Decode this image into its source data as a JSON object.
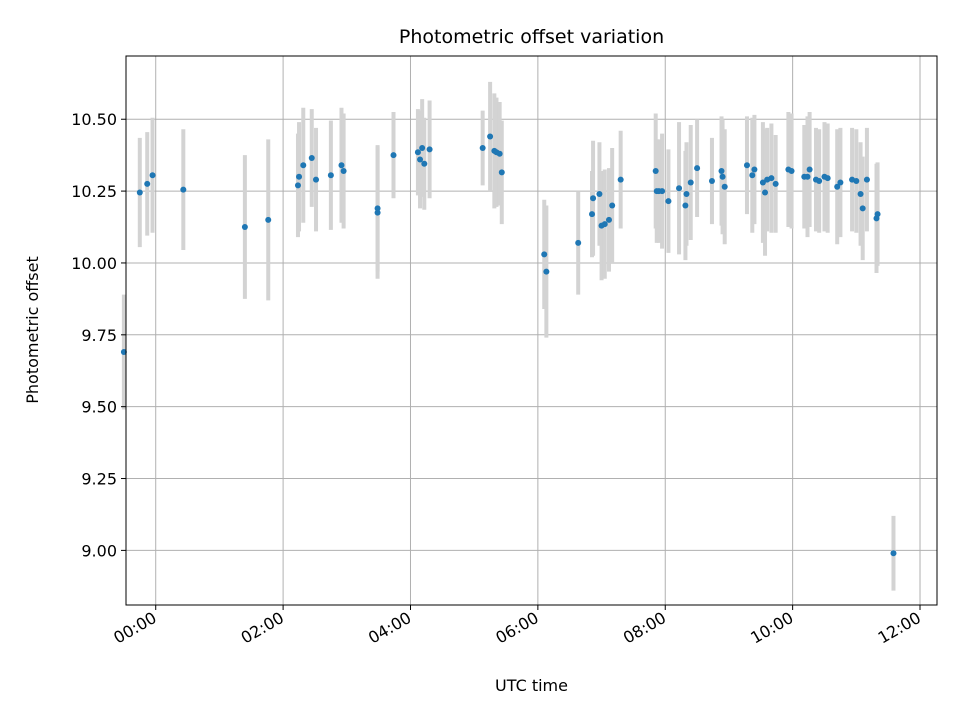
{
  "chart_data": {
    "type": "scatter",
    "title": "Photometric offset variation",
    "xlabel": "UTC time",
    "ylabel": "Photometric offset",
    "grid": true,
    "xlim": [
      "-00:28",
      "12:16"
    ],
    "ylim": [
      8.81,
      10.72
    ],
    "x_ticks": [
      "00:00",
      "02:00",
      "04:00",
      "06:00",
      "08:00",
      "10:00",
      "12:00"
    ],
    "y_ticks": [
      "9.00",
      "9.25",
      "9.50",
      "9.75",
      "10.00",
      "10.25",
      "10.50"
    ],
    "colors": {
      "point": "#1f77b4",
      "errorbar": "#d3d3d3",
      "grid": "#b0b0b0"
    },
    "series": [
      {
        "x": [
          "-00:30",
          "-00:15",
          "-00:08",
          "-00:03",
          "00:26",
          "01:24",
          "01:46",
          "02:14",
          "02:15",
          "02:19",
          "02:27",
          "02:31",
          "02:45",
          "02:55",
          "02:57",
          "03:29",
          "03:29",
          "03:44",
          "04:07",
          "04:09",
          "04:11",
          "04:13",
          "04:18",
          "05:08",
          "05:15",
          "05:19",
          "05:21",
          "05:24",
          "05:26",
          "06:06",
          "06:08",
          "06:38",
          "06:51",
          "06:52",
          "06:58",
          "07:00",
          "07:03",
          "07:07",
          "07:10",
          "07:18",
          "07:51",
          "07:52",
          "07:54",
          "07:57",
          "08:03",
          "08:13",
          "08:19",
          "08:20",
          "08:24",
          "08:30",
          "08:44",
          "08:53",
          "08:54",
          "08:56",
          "09:17",
          "09:22",
          "09:24",
          "09:32",
          "09:34",
          "09:36",
          "09:40",
          "09:44",
          "09:56",
          "09:59",
          "10:11",
          "10:14",
          "10:16",
          "10:22",
          "10:25",
          "10:30",
          "10:33",
          "10:42",
          "10:45",
          "10:56",
          "11:00",
          "11:04",
          "11:06",
          "11:10",
          "11:19",
          "11:20",
          "11:35"
        ],
        "y": [
          9.69,
          10.245,
          10.275,
          10.305,
          10.255,
          10.125,
          10.15,
          10.27,
          10.3,
          10.34,
          10.365,
          10.29,
          10.305,
          10.34,
          10.32,
          10.175,
          10.19,
          10.375,
          10.385,
          10.36,
          10.4,
          10.345,
          10.395,
          10.4,
          10.44,
          10.39,
          10.385,
          10.38,
          10.315,
          10.03,
          9.97,
          10.07,
          10.17,
          10.225,
          10.24,
          10.13,
          10.135,
          10.15,
          10.2,
          10.29,
          10.32,
          10.25,
          10.25,
          10.25,
          10.215,
          10.26,
          10.2,
          10.24,
          10.28,
          10.33,
          10.285,
          10.32,
          10.3,
          10.265,
          10.34,
          10.305,
          10.325,
          10.28,
          10.245,
          10.29,
          10.295,
          10.275,
          10.325,
          10.32,
          10.3,
          10.3,
          10.325,
          10.29,
          10.285,
          10.3,
          10.295,
          10.265,
          10.28,
          10.29,
          10.285,
          10.24,
          10.19,
          10.29,
          10.155,
          10.17,
          8.99
        ],
        "yerr": [
          0.2,
          0.19,
          0.18,
          0.2,
          0.21,
          0.25,
          0.28,
          0.18,
          0.19,
          0.2,
          0.17,
          0.18,
          0.19,
          0.2,
          0.2,
          0.23,
          0.22,
          0.15,
          0.15,
          0.17,
          0.17,
          0.16,
          0.17,
          0.13,
          0.19,
          0.2,
          0.19,
          0.18,
          0.18,
          0.19,
          0.23,
          0.18,
          0.15,
          0.2,
          0.18,
          0.19,
          0.19,
          0.18,
          0.2,
          0.17,
          0.2,
          0.18,
          0.18,
          0.2,
          0.18,
          0.23,
          0.19,
          0.18,
          0.2,
          0.17,
          0.15,
          0.19,
          0.2,
          0.2,
          0.17,
          0.2,
          0.19,
          0.21,
          0.22,
          0.18,
          0.19,
          0.17,
          0.2,
          0.2,
          0.18,
          0.21,
          0.2,
          0.18,
          0.18,
          0.19,
          0.19,
          0.2,
          0.19,
          0.18,
          0.18,
          0.18,
          0.18,
          0.18,
          0.19,
          0.18,
          0.13
        ]
      }
    ]
  }
}
